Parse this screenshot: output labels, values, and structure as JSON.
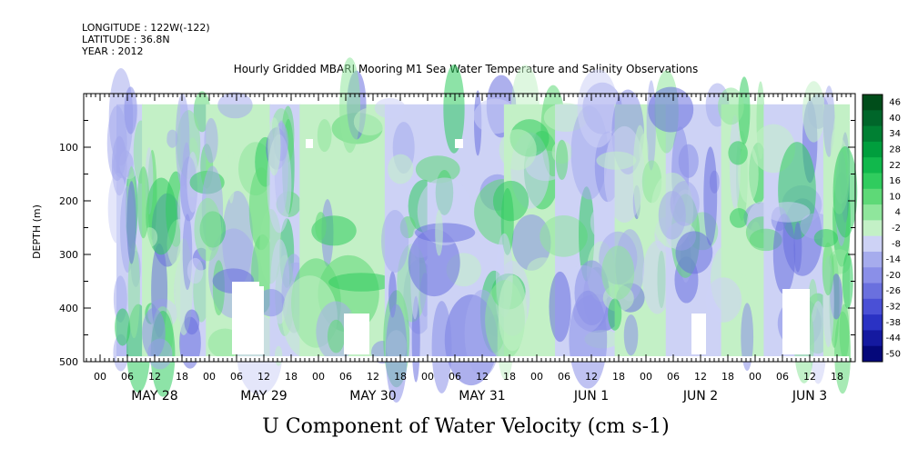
{
  "meta": {
    "longitude": "LONGITUDE : 122W(-122)",
    "latitude": "LATITUDE : 36.8N",
    "year": "YEAR : 2012"
  },
  "chart_data": {
    "type": "heatmap",
    "title": "Hourly Gridded MBARI Mooring M1 Sea Water Temperature and Salinity Observations",
    "xlabel": "U Component of Water Velocity (cm s-1)",
    "ylabel": "DEPTH (m)",
    "ylim": [
      500,
      0
    ],
    "y_ticks": [
      100,
      200,
      300,
      400,
      500
    ],
    "y_range_data": [
      20,
      490
    ],
    "x_hour_ticks": [
      "00",
      "06",
      "12",
      "18",
      "00",
      "06",
      "12",
      "18",
      "00",
      "06",
      "12",
      "18",
      "00",
      "06",
      "12",
      "18",
      "00",
      "06",
      "12",
      "18",
      "00",
      "06",
      "12",
      "18",
      "00",
      "06",
      "12",
      "18"
    ],
    "x_day_labels": [
      "MAY 28",
      "MAY 29",
      "MAY 30",
      "MAY 31",
      "JUN  1",
      "JUN  2",
      "JUN  3"
    ],
    "colorbar": {
      "levels": [
        "46",
        "40",
        "34",
        "28",
        "22",
        "16",
        "10",
        "4",
        "-2",
        "-8",
        "-14",
        "-20",
        "-26",
        "-32",
        "-38",
        "-44",
        "-50"
      ],
      "colors": [
        "#004d1a",
        "#00662a",
        "#008033",
        "#009e3d",
        "#11b84c",
        "#30cc5e",
        "#5ed977",
        "#8fe69c",
        "#c3f0c6",
        "#cdd2f5",
        "#a6aced",
        "#8a8fe8",
        "#6a70de",
        "#4a50d6",
        "#2a32c4",
        "#1419a0",
        "#05087a"
      ]
    },
    "field_note": "",
    "regions": [
      {
        "x": 0,
        "w": 12,
        "dominant": "blue"
      },
      {
        "x": 12,
        "w": 18,
        "dominant": "green"
      },
      {
        "x": 30,
        "w": 12,
        "dominant": "blue"
      },
      {
        "x": 42,
        "w": 30,
        "dominant": "green"
      },
      {
        "x": 72,
        "w": 14,
        "dominant": "blue"
      },
      {
        "x": 86,
        "w": 40,
        "dominant": "green"
      },
      {
        "x": 126,
        "w": 20,
        "dominant": "blue"
      },
      {
        "x": 146,
        "w": 36,
        "dominant": "blue"
      },
      {
        "x": 182,
        "w": 24,
        "dominant": "green"
      },
      {
        "x": 206,
        "w": 28,
        "dominant": "blue"
      },
      {
        "x": 234,
        "w": 24,
        "dominant": "green"
      },
      {
        "x": 258,
        "w": 26,
        "dominant": "blue"
      },
      {
        "x": 284,
        "w": 20,
        "dominant": "green"
      },
      {
        "x": 304,
        "w": 28,
        "dominant": "blue"
      },
      {
        "x": 332,
        "w": 12,
        "dominant": "green"
      }
    ]
  }
}
